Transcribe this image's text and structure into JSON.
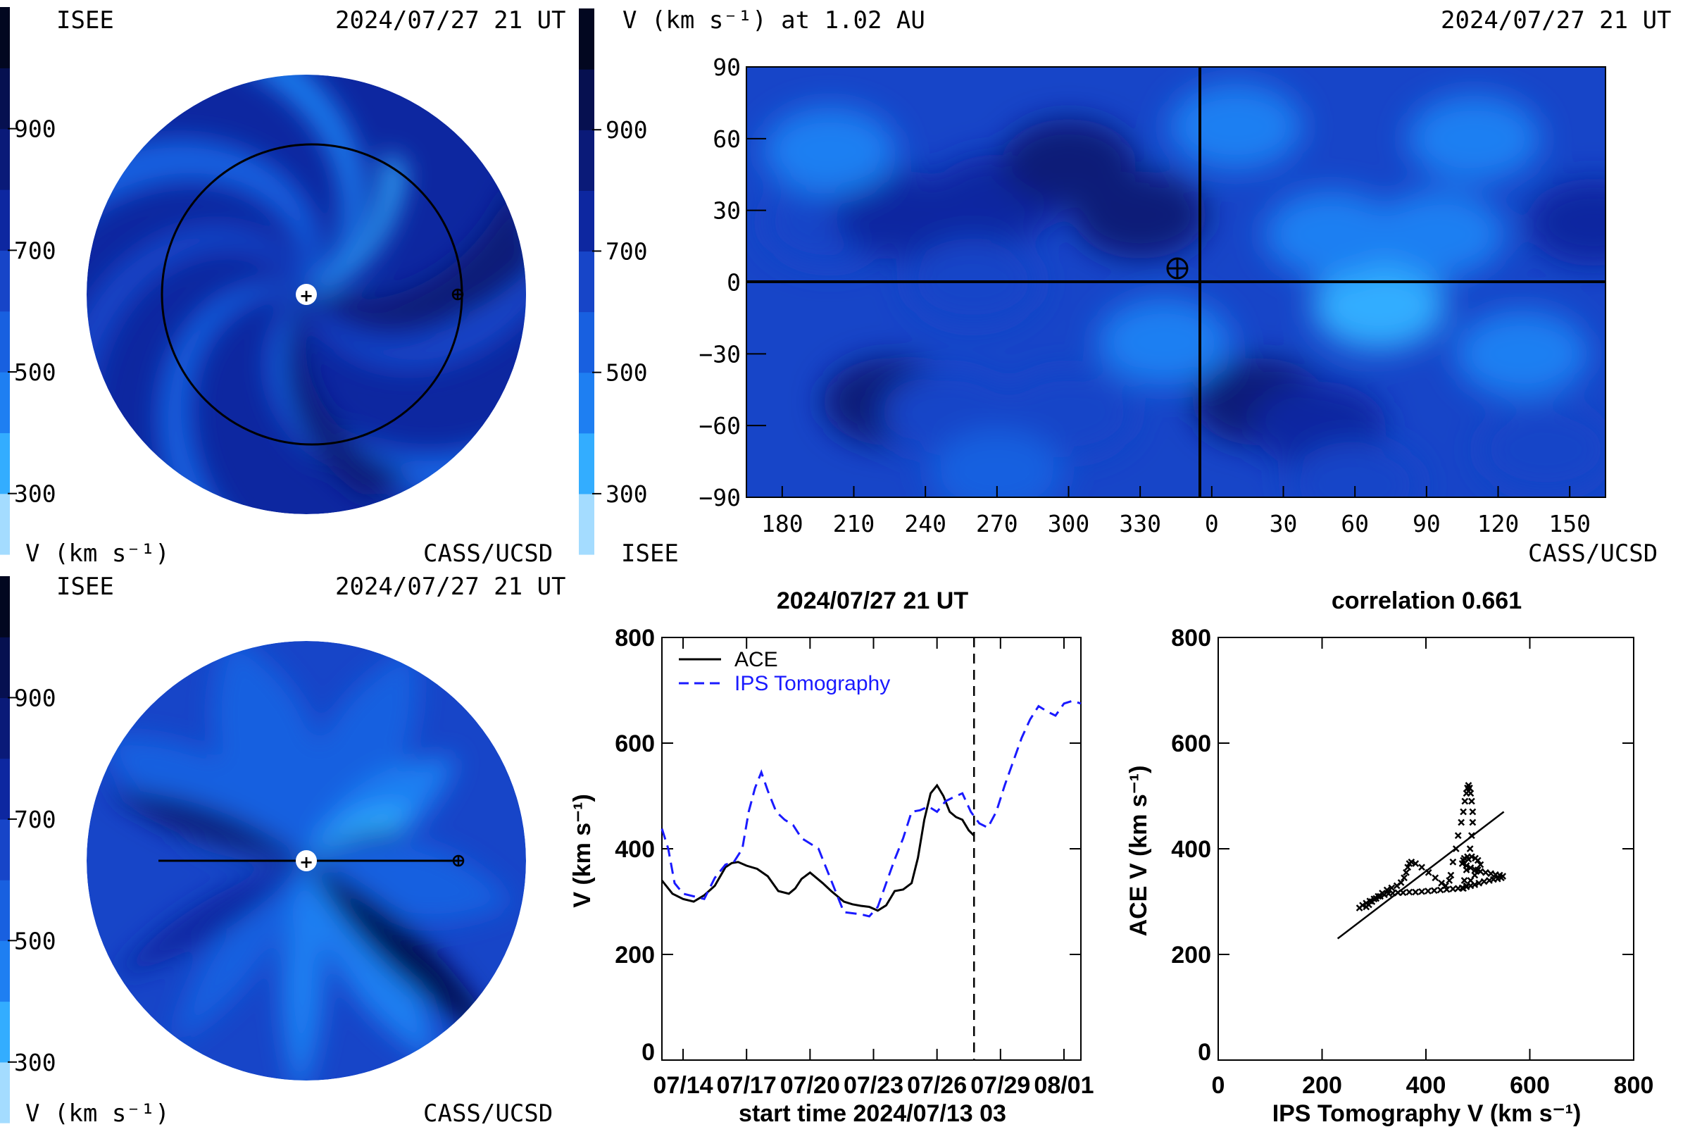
{
  "colors": {
    "levels": [
      "#a4dcff",
      "#33adff",
      "#1e7ff2",
      "#1860e0",
      "#1745c8",
      "#0d27a0",
      "#0a1a78",
      "#061050",
      "#020720"
    ],
    "ace": "#000000",
    "ips": "#1a1aff",
    "marker": "#000000"
  },
  "colorbar": {
    "ticks": [
      "900",
      "700",
      "500",
      "300"
    ],
    "unit": "V (km s⁻¹)"
  },
  "panels": {
    "top_left": {
      "left_label": "ISEE",
      "date": "2024/07/27 21 UT",
      "bottom_right": "CASS/UCSD",
      "unit": "V (km s⁻¹)"
    },
    "bottom_left": {
      "left_label": "ISEE",
      "date": "2024/07/27 21 UT",
      "bottom_right": "CASS/UCSD",
      "unit": "V (km s⁻¹)"
    },
    "map": {
      "title": "V (km s⁻¹) at 1.02 AU",
      "date": "2024/07/27 21 UT",
      "bottom_left": "ISEE",
      "bottom_right": "CASS/UCSD"
    }
  },
  "chart_data": [
    {
      "type": "heatmap",
      "title": "V (km s⁻¹) at 1.02 AU",
      "x_ticks": [
        "180",
        "210",
        "240",
        "270",
        "300",
        "330",
        "0",
        "30",
        "60",
        "90",
        "120",
        "150"
      ],
      "y_ticks": [
        "90",
        "60",
        "30",
        "0",
        "−30",
        "−60",
        "−90"
      ],
      "ylim": [
        -90,
        90
      ],
      "blobs": [
        {
          "lon": 270,
          "lat": 35,
          "v": 760
        },
        {
          "lon": 300,
          "lat": 50,
          "v": 820
        },
        {
          "lon": 330,
          "lat": 28,
          "v": 800
        },
        {
          "lon": 200,
          "lat": 25,
          "v": 650
        },
        {
          "lon": 230,
          "lat": 28,
          "v": 720
        },
        {
          "lon": 260,
          "lat": 0,
          "v": 640
        },
        {
          "lon": 20,
          "lat": -50,
          "v": 860
        },
        {
          "lon": 45,
          "lat": -60,
          "v": 720
        },
        {
          "lon": 225,
          "lat": -50,
          "v": 800
        },
        {
          "lon": 250,
          "lat": -55,
          "v": 640
        },
        {
          "lon": 300,
          "lat": -55,
          "v": 620
        },
        {
          "lon": 160,
          "lat": 25,
          "v": 700
        },
        {
          "lon": 140,
          "lat": -70,
          "v": 680
        },
        {
          "lon": 60,
          "lat": -85,
          "v": 640
        },
        {
          "lon": 70,
          "lat": -10,
          "v": 370
        },
        {
          "lon": 50,
          "lat": 20,
          "v": 430
        },
        {
          "lon": 95,
          "lat": 20,
          "v": 410
        },
        {
          "lon": 110,
          "lat": 60,
          "v": 480
        },
        {
          "lon": 10,
          "lat": 65,
          "v": 470
        },
        {
          "lon": 340,
          "lat": -25,
          "v": 460
        },
        {
          "lon": 200,
          "lat": 55,
          "v": 470
        },
        {
          "lon": 130,
          "lat": -30,
          "v": 440
        },
        {
          "lon": 270,
          "lat": -80,
          "v": 500
        }
      ]
    },
    {
      "type": "line",
      "title": "2024/07/27 21 UT",
      "xlabel": "start time 2024/07/13 03",
      "ylabel": "V (km s⁻¹)",
      "x_ticks": [
        "07/14",
        "07/17",
        "07/20",
        "07/23",
        "07/26",
        "07/29",
        "08/01"
      ],
      "y_ticks": [
        "0",
        "200",
        "400",
        "600",
        "800"
      ],
      "ylim": [
        0,
        800
      ],
      "xlim": [
        0,
        19.8
      ],
      "now_day": 14.75,
      "series": [
        {
          "name": "ACE",
          "style": "solid",
          "x": [
            0,
            0.5,
            1,
            1.5,
            2,
            2.5,
            3,
            3.3,
            3.6,
            4,
            4.5,
            5,
            5.5,
            6,
            6.3,
            6.6,
            7,
            7.3,
            7.6,
            8,
            8.3,
            8.6,
            9,
            9.4,
            9.8,
            10.2,
            10.6,
            11,
            11.4,
            11.8,
            12.1,
            12.4,
            12.7,
            13,
            13.3,
            13.6,
            13.9,
            14.2,
            14.5,
            14.75
          ],
          "y": [
            340,
            315,
            305,
            300,
            312,
            330,
            365,
            373,
            375,
            368,
            362,
            348,
            320,
            315,
            325,
            343,
            355,
            345,
            335,
            320,
            310,
            300,
            295,
            292,
            290,
            283,
            293,
            320,
            323,
            335,
            383,
            455,
            505,
            520,
            500,
            470,
            460,
            455,
            435,
            425
          ]
        },
        {
          "name": "IPS Tomography",
          "style": "dashed",
          "x": [
            0,
            0.3,
            0.6,
            1,
            1.5,
            2,
            2.5,
            3,
            3.4,
            3.8,
            4.1,
            4.4,
            4.7,
            5,
            5.4,
            5.8,
            6.2,
            6.6,
            7,
            7.4,
            7.8,
            8.2,
            8.6,
            9,
            9.4,
            9.8,
            10.2,
            10.6,
            11,
            11.4,
            11.8,
            12.2,
            12.6,
            13,
            13.4,
            13.8,
            14.2,
            14.6,
            15,
            15.4,
            15.8,
            16.2,
            16.6,
            17,
            17.4,
            17.8,
            18.2,
            18.6,
            19,
            19.4,
            19.8
          ],
          "y": [
            438,
            400,
            335,
            315,
            310,
            305,
            345,
            370,
            375,
            400,
            470,
            515,
            545,
            510,
            470,
            455,
            445,
            420,
            410,
            400,
            360,
            320,
            280,
            278,
            276,
            272,
            290,
            335,
            380,
            420,
            470,
            473,
            480,
            470,
            490,
            498,
            505,
            470,
            448,
            440,
            470,
            520,
            565,
            610,
            645,
            670,
            660,
            652,
            675,
            680,
            675
          ]
        }
      ]
    },
    {
      "type": "scatter",
      "title": "correlation 0.661",
      "xlabel": "IPS Tomography V (km s⁻¹)",
      "ylabel": "ACE V (km s⁻¹)",
      "x_ticks": [
        "0",
        "200",
        "400",
        "600",
        "800"
      ],
      "y_ticks": [
        "0",
        "200",
        "400",
        "600",
        "800"
      ],
      "xlim": [
        0,
        800
      ],
      "ylim": [
        0,
        800
      ],
      "fit": {
        "x": [
          230,
          550
        ],
        "y": [
          230,
          470
        ]
      },
      "points": {
        "x": [
          272,
          278,
          285,
          292,
          300,
          308,
          316,
          325,
          334,
          344,
          352,
          358,
          362,
          365,
          368,
          372,
          380,
          392,
          405,
          418,
          430,
          438,
          445,
          448,
          452,
          458,
          462,
          468,
          472,
          475,
          478,
          480,
          482,
          484,
          486,
          488,
          490,
          490,
          488,
          485,
          482,
          478,
          474,
          472,
          478,
          486,
          494,
          500,
          505,
          500,
          495,
          488,
          480,
          474,
          472,
          470,
          478,
          486,
          495,
          505,
          515,
          525,
          534,
          542,
          548,
          545,
          538,
          530,
          522,
          512,
          502,
          494,
          486,
          478,
          470,
          462,
          452,
          440,
          428,
          416,
          404,
          392,
          380,
          368,
          356,
          346,
          336,
          328,
          320,
          312,
          304,
          296,
          290,
          285
        ],
        "y": [
          288,
          293,
          297,
          301,
          305,
          310,
          316,
          322,
          326,
          330,
          336,
          345,
          355,
          365,
          372,
          375,
          372,
          365,
          355,
          345,
          335,
          330,
          340,
          350,
          375,
          400,
          425,
          450,
          470,
          490,
          505,
          515,
          520,
          515,
          505,
          490,
          470,
          450,
          425,
          400,
          380,
          360,
          340,
          325,
          330,
          340,
          350,
          360,
          370,
          378,
          382,
          385,
          385,
          382,
          378,
          372,
          368,
          364,
          360,
          357,
          355,
          353,
          351,
          350,
          348,
          345,
          343,
          342,
          340,
          338,
          335,
          332,
          330,
          328,
          326,
          325,
          324,
          323,
          322,
          321,
          320,
          319,
          318,
          318,
          317,
          317,
          316,
          315,
          313,
          310,
          306,
          300,
          294,
          290
        ]
      }
    }
  ]
}
